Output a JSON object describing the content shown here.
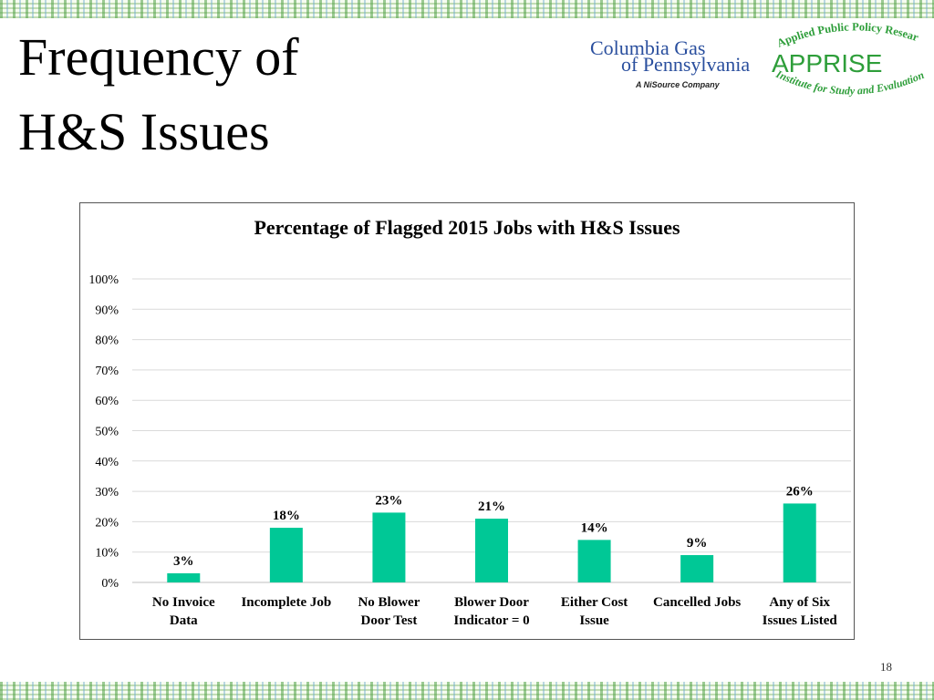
{
  "slide": {
    "title_line1": "Frequency of",
    "title_line2": "H&S Issues",
    "page_number": "18"
  },
  "logos": {
    "columbia_line1": "Columbia Gas",
    "columbia_line2": "of Pennsylvania",
    "columbia_tagline": "A NiSource Company",
    "apprise_arc_top": "Applied Public Policy Research",
    "apprise_name": "APPRISE",
    "apprise_arc_bottom": "Institute for Study and Evaluation"
  },
  "colors": {
    "bar": "#00C896",
    "gridline": "#d9d9d9",
    "columbia_blue": "#2a4f9e",
    "apprise_green": "#2e9e3a"
  },
  "chart_data": {
    "type": "bar",
    "title": "Percentage of Flagged 2015 Jobs with H&S Issues",
    "xlabel": "",
    "ylabel": "",
    "ylim": [
      0,
      100
    ],
    "yticks": [
      "0%",
      "10%",
      "20%",
      "30%",
      "40%",
      "50%",
      "60%",
      "70%",
      "80%",
      "90%",
      "100%"
    ],
    "categories": [
      [
        "No Invoice",
        "Data"
      ],
      [
        "Incomplete Job",
        ""
      ],
      [
        "No Blower",
        "Door Test"
      ],
      [
        "Blower Door",
        "Indicator = 0"
      ],
      [
        "Either Cost",
        "Issue"
      ],
      [
        "Cancelled Jobs",
        ""
      ],
      [
        "Any of Six",
        "Issues Listed"
      ]
    ],
    "values": [
      3,
      18,
      23,
      21,
      14,
      9,
      26
    ],
    "data_labels": [
      "3%",
      "18%",
      "23%",
      "21%",
      "14%",
      "9%",
      "26%"
    ],
    "grid": true,
    "legend": "none"
  }
}
